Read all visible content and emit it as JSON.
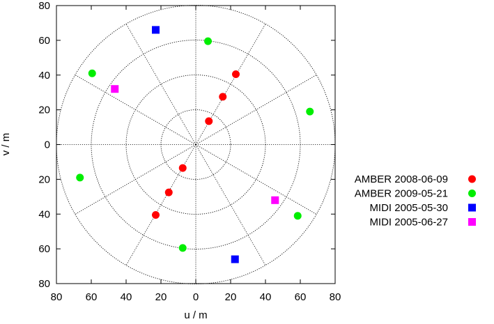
{
  "chart_data": {
    "type": "scatter",
    "title": "",
    "xlabel": "u / m",
    "ylabel": "v / m",
    "xlim": [
      -80,
      80
    ],
    "ylim": [
      -80,
      80
    ],
    "x_ticks": [
      "80",
      "60",
      "40",
      "20",
      "0",
      "20",
      "40",
      "60",
      "80"
    ],
    "y_ticks": [
      "80",
      "60",
      "40",
      "20",
      "0",
      "20",
      "40",
      "60",
      "80"
    ],
    "polar_grid": {
      "radii": [
        20,
        40,
        60,
        80
      ],
      "angles_deg": [
        30,
        60,
        90,
        120,
        150,
        180,
        210,
        240,
        270,
        300,
        330,
        360
      ]
    },
    "legend_position": "right",
    "series": [
      {
        "name": "AMBER 2008-06-09",
        "color": "#ff0000",
        "marker": "circle",
        "points": [
          {
            "x": 23,
            "y": 40.5
          },
          {
            "x": 15.5,
            "y": 27.5
          },
          {
            "x": 7.5,
            "y": 13.5
          },
          {
            "x": -23,
            "y": -40.5
          },
          {
            "x": -15.5,
            "y": -27.5
          },
          {
            "x": -7.5,
            "y": -13.5
          }
        ]
      },
      {
        "name": "AMBER 2009-05-21",
        "color": "#00ee00",
        "marker": "circle",
        "points": [
          {
            "x": 7,
            "y": 59.5
          },
          {
            "x": -59.5,
            "y": 41
          },
          {
            "x": 65.5,
            "y": 19
          },
          {
            "x": -66.5,
            "y": -19
          },
          {
            "x": 58.5,
            "y": -41
          },
          {
            "x": -7.5,
            "y": -59.5
          }
        ]
      },
      {
        "name": "MIDI 2005-05-30",
        "color": "#0000ff",
        "marker": "square",
        "points": [
          {
            "x": -23,
            "y": 66
          },
          {
            "x": 22.5,
            "y": -66
          }
        ]
      },
      {
        "name": "MIDI 2005-06-27",
        "color": "#ff00ff",
        "marker": "square",
        "points": [
          {
            "x": -46.5,
            "y": 32
          },
          {
            "x": 45.5,
            "y": -32
          }
        ]
      }
    ]
  }
}
